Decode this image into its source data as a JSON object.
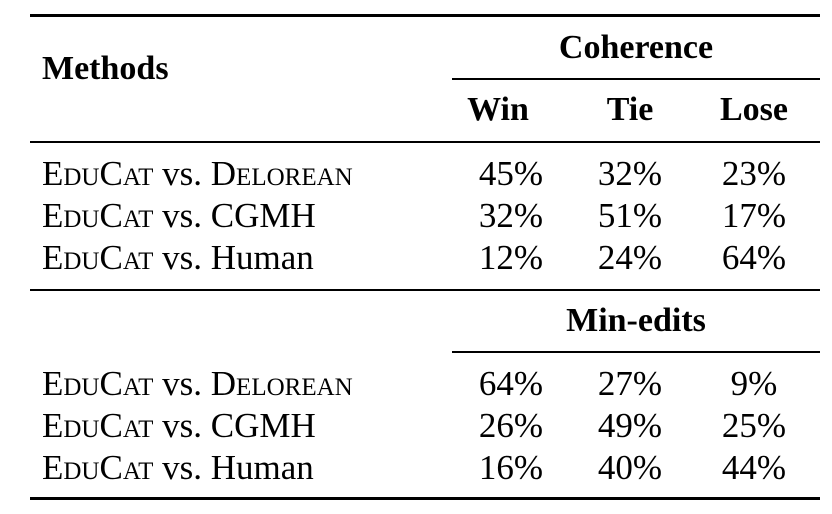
{
  "table": {
    "header": {
      "methods": "Methods",
      "coherence": "Coherence",
      "min_edits": "Min-edits",
      "win": "Win",
      "tie": "Tie",
      "lose": "Lose"
    },
    "coherence_rows": [
      {
        "method_a": "EduCat",
        "vs": "vs.",
        "method_b": "Delorean",
        "win": "45%",
        "tie": "32%",
        "lose": "23%"
      },
      {
        "method_a": "EduCat",
        "vs": "vs.",
        "method_b": "CGMH",
        "win": "32%",
        "tie": "51%",
        "lose": "17%"
      },
      {
        "method_a": "EduCat",
        "vs": "vs.",
        "method_b": "Human",
        "win": "12%",
        "tie": "24%",
        "lose": "64%"
      }
    ],
    "min_edits_rows": [
      {
        "method_a": "EduCat",
        "vs": "vs.",
        "method_b": "Delorean",
        "win": "64%",
        "tie": "27%",
        "lose": "9%"
      },
      {
        "method_a": "EduCat",
        "vs": "vs.",
        "method_b": "CGMH",
        "win": "26%",
        "tie": "49%",
        "lose": "25%"
      },
      {
        "method_a": "EduCat",
        "vs": "vs.",
        "method_b": "Human",
        "win": "16%",
        "tie": "40%",
        "lose": "44%"
      }
    ]
  }
}
